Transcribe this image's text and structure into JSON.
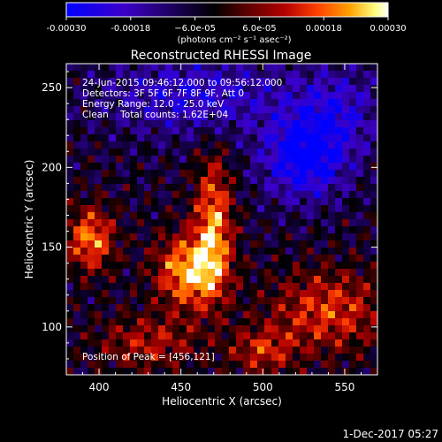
{
  "chart_data": {
    "type": "heatmap",
    "title": "Reconstructed RHESSI Image",
    "xlabel": "Heliocentric X (arcsec)",
    "ylabel": "Heliocentric Y (arcsec)",
    "xlim": [
      380,
      570
    ],
    "ylim": [
      70,
      265
    ],
    "xticks": [
      400,
      450,
      500,
      550
    ],
    "xtick_labels": [
      "400",
      "450",
      "500",
      "550"
    ],
    "yticks": [
      100,
      150,
      200,
      250
    ],
    "ytick_labels": [
      "100",
      "150",
      "200",
      "250"
    ],
    "colorbar": {
      "range": [
        -0.0003,
        0.0003
      ],
      "ticks": [
        -0.0003,
        -0.00018,
        -6e-05,
        6e-05,
        0.00018,
        0.0003
      ],
      "tick_labels": [
        "-0.00030",
        "-0.00018",
        "−6.0e-05",
        "6.0e-05",
        "0.00018",
        "0.00030"
      ],
      "units_label": "(photons cm⁻² s⁻¹ asec⁻²)",
      "colors": [
        "#0000ff",
        "#3c00c8",
        "#000000",
        "#5a0000",
        "#b40000",
        "#ff4000",
        "#ffa000",
        "#ffff80",
        "#ffffff"
      ]
    },
    "annotations": {
      "time_range": "24-Jun-2015 09:46:12.000 to 09:56:12.000",
      "detectors": "Detectors: 3F 5F 6F 7F 8F 9F, Att 0",
      "energy_range": "Energy Range: 12.0 - 25.0 keV",
      "clean_info": "Clean    Total counts: 1.62E+04",
      "peak_position": "Position of Peak = [456,121]"
    },
    "sources": [
      {
        "x": 455,
        "y": 135,
        "amp": 1.0,
        "sx": 14,
        "sy": 16
      },
      {
        "x": 470,
        "y": 165,
        "amp": 0.85,
        "sx": 8,
        "sy": 30
      },
      {
        "x": 395,
        "y": 155,
        "amp": 0.85,
        "sx": 10,
        "sy": 14
      },
      {
        "x": 540,
        "y": 110,
        "amp": 0.65,
        "sx": 25,
        "sy": 18
      },
      {
        "x": 500,
        "y": 85,
        "amp": 0.55,
        "sx": 14,
        "sy": 10
      },
      {
        "x": 430,
        "y": 90,
        "amp": 0.5,
        "sx": 22,
        "sy": 12
      },
      {
        "x": 525,
        "y": 205,
        "amp": -0.85,
        "sx": 18,
        "sy": 18
      },
      {
        "x": 460,
        "y": 245,
        "amp": -0.55,
        "sx": 40,
        "sy": 18
      },
      {
        "x": 545,
        "y": 235,
        "amp": -0.5,
        "sx": 20,
        "sy": 20
      }
    ],
    "footer_date": "1-Dec-2017 05:27"
  }
}
